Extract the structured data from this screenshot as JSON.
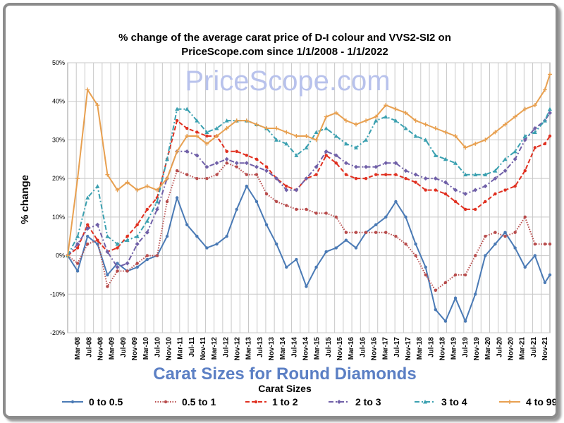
{
  "chart_data": {
    "type": "line",
    "title": "% change of the average carat price of  D-I colour and VVS2-SI2  on",
    "subtitle": "PriceScope.com since 1/1/2008 - 1/1/2022",
    "watermark": "PriceScope.com",
    "ylabel": "% change",
    "xlabel": "Carat Sizes for Round Diamonds",
    "legend_title": "Carat Sizes",
    "legend_position": "bottom",
    "grid": true,
    "ylim": [
      -20,
      50
    ],
    "yticks": [
      "50%",
      "40%",
      "30%",
      "20%",
      "10%",
      "0%",
      "-10%",
      "-20%"
    ],
    "xticks": [
      "Mar-08",
      "Jul-08",
      "Nov-08",
      "Mar-09",
      "Jul-09",
      "Nov-09",
      "Mar-10",
      "Jul-10",
      "Nov-10",
      "Mar-11",
      "Jul-11",
      "Nov-11",
      "Mar-12",
      "Jul-12",
      "Nov-12",
      "Mar-13",
      "Jul-13",
      "Nov-13",
      "Mar-14",
      "Jul-14",
      "Nov-14",
      "Mar-15",
      "Jul-15",
      "Nov-15",
      "Mar-16",
      "Jul-16",
      "Nov-16",
      "Mar-17",
      "Jul-17",
      "Nov-17",
      "Mar-18",
      "Jul-18",
      "Nov-18",
      "Mar-19",
      "Jul-19",
      "Nov-19",
      "Mar-20",
      "Jul-20",
      "Nov-20",
      "Mar-21",
      "Jul-21",
      "Nov-21"
    ],
    "x_start": "Jan-08",
    "x_end": "Jan-22",
    "series": [
      {
        "name": "0 to 0.5",
        "color": "#4a7ab5",
        "dash": "solid",
        "marker": "circle",
        "points": [
          [
            0,
            0
          ],
          [
            2,
            -4
          ],
          [
            4,
            5
          ],
          [
            6,
            3
          ],
          [
            8,
            -5
          ],
          [
            10,
            -2
          ],
          [
            12,
            -4
          ],
          [
            14,
            -3
          ],
          [
            16,
            -1
          ],
          [
            18,
            0
          ],
          [
            20,
            5
          ],
          [
            22,
            15
          ],
          [
            24,
            8
          ],
          [
            26,
            5
          ],
          [
            28,
            2
          ],
          [
            30,
            3
          ],
          [
            32,
            5
          ],
          [
            34,
            12
          ],
          [
            36,
            18
          ],
          [
            38,
            14
          ],
          [
            40,
            8
          ],
          [
            42,
            3
          ],
          [
            44,
            -3
          ],
          [
            46,
            -1
          ],
          [
            48,
            -8
          ],
          [
            50,
            -3
          ],
          [
            52,
            1
          ],
          [
            54,
            2
          ],
          [
            56,
            4
          ],
          [
            58,
            2
          ],
          [
            60,
            6
          ],
          [
            62,
            8
          ],
          [
            64,
            10
          ],
          [
            66,
            14
          ],
          [
            68,
            10
          ],
          [
            70,
            3
          ],
          [
            72,
            -3
          ],
          [
            74,
            -14
          ],
          [
            76,
            -17
          ],
          [
            78,
            -11
          ],
          [
            80,
            -17
          ],
          [
            82,
            -10
          ],
          [
            84,
            0
          ],
          [
            86,
            3
          ],
          [
            88,
            6
          ],
          [
            90,
            2
          ],
          [
            92,
            -3
          ],
          [
            94,
            0
          ],
          [
            96,
            -7
          ],
          [
            97,
            -5
          ]
        ]
      },
      {
        "name": "0.5 to 1",
        "color": "#b84c4c",
        "dash": "dotted",
        "marker": "circle",
        "points": [
          [
            0,
            0
          ],
          [
            2,
            -2
          ],
          [
            4,
            3
          ],
          [
            6,
            4
          ],
          [
            8,
            -8
          ],
          [
            10,
            -4
          ],
          [
            12,
            -4
          ],
          [
            14,
            -2
          ],
          [
            16,
            0
          ],
          [
            18,
            0
          ],
          [
            20,
            14
          ],
          [
            22,
            22
          ],
          [
            24,
            21
          ],
          [
            26,
            20
          ],
          [
            28,
            20
          ],
          [
            30,
            21
          ],
          [
            32,
            24
          ],
          [
            34,
            23
          ],
          [
            36,
            21
          ],
          [
            38,
            21
          ],
          [
            40,
            16
          ],
          [
            42,
            14
          ],
          [
            44,
            13
          ],
          [
            46,
            12
          ],
          [
            48,
            12
          ],
          [
            50,
            11
          ],
          [
            52,
            11
          ],
          [
            54,
            10
          ],
          [
            56,
            6
          ],
          [
            58,
            6
          ],
          [
            60,
            6
          ],
          [
            62,
            6
          ],
          [
            64,
            6
          ],
          [
            66,
            5
          ],
          [
            68,
            3
          ],
          [
            70,
            0
          ],
          [
            72,
            -5
          ],
          [
            74,
            -9
          ],
          [
            76,
            -7
          ],
          [
            78,
            -5
          ],
          [
            80,
            -5
          ],
          [
            82,
            0
          ],
          [
            84,
            5
          ],
          [
            86,
            6
          ],
          [
            88,
            5
          ],
          [
            90,
            6
          ],
          [
            92,
            10
          ],
          [
            94,
            3
          ],
          [
            96,
            3
          ],
          [
            97,
            3
          ]
        ]
      },
      {
        "name": "1 to 2",
        "color": "#e03020",
        "dash": "dashed",
        "marker": "circle",
        "points": [
          [
            0,
            0
          ],
          [
            2,
            2
          ],
          [
            4,
            8
          ],
          [
            6,
            4
          ],
          [
            8,
            1
          ],
          [
            10,
            2
          ],
          [
            12,
            5
          ],
          [
            14,
            8
          ],
          [
            16,
            12
          ],
          [
            18,
            15
          ],
          [
            20,
            25
          ],
          [
            22,
            35
          ],
          [
            24,
            33
          ],
          [
            26,
            32
          ],
          [
            28,
            31
          ],
          [
            30,
            31
          ],
          [
            32,
            27
          ],
          [
            34,
            27
          ],
          [
            36,
            26
          ],
          [
            38,
            25
          ],
          [
            40,
            23
          ],
          [
            42,
            20
          ],
          [
            44,
            18
          ],
          [
            46,
            17
          ],
          [
            48,
            20
          ],
          [
            50,
            21
          ],
          [
            52,
            26
          ],
          [
            54,
            24
          ],
          [
            56,
            21
          ],
          [
            58,
            20
          ],
          [
            60,
            20
          ],
          [
            62,
            21
          ],
          [
            64,
            21
          ],
          [
            66,
            21
          ],
          [
            68,
            20
          ],
          [
            70,
            19
          ],
          [
            72,
            17
          ],
          [
            74,
            17
          ],
          [
            76,
            16
          ],
          [
            78,
            14
          ],
          [
            80,
            12
          ],
          [
            82,
            12
          ],
          [
            84,
            14
          ],
          [
            86,
            16
          ],
          [
            88,
            17
          ],
          [
            90,
            18
          ],
          [
            92,
            22
          ],
          [
            94,
            28
          ],
          [
            96,
            29
          ],
          [
            97,
            31
          ]
        ]
      },
      {
        "name": "2 to 3",
        "color": "#7060a8",
        "dash": "dashdot",
        "marker": "diamond",
        "points": [
          [
            0,
            0
          ],
          [
            2,
            3
          ],
          [
            4,
            7
          ],
          [
            6,
            8
          ],
          [
            8,
            1
          ],
          [
            10,
            -3
          ],
          [
            12,
            -2
          ],
          [
            14,
            3
          ],
          [
            16,
            6
          ],
          [
            18,
            12
          ],
          [
            20,
            20
          ],
          [
            22,
            27
          ],
          [
            24,
            27
          ],
          [
            26,
            26
          ],
          [
            28,
            23
          ],
          [
            30,
            24
          ],
          [
            32,
            25
          ],
          [
            34,
            24
          ],
          [
            36,
            24
          ],
          [
            38,
            23
          ],
          [
            40,
            22
          ],
          [
            42,
            20
          ],
          [
            44,
            17
          ],
          [
            46,
            17
          ],
          [
            48,
            20
          ],
          [
            50,
            23
          ],
          [
            52,
            27
          ],
          [
            54,
            26
          ],
          [
            56,
            24
          ],
          [
            58,
            23
          ],
          [
            60,
            23
          ],
          [
            62,
            23
          ],
          [
            64,
            24
          ],
          [
            66,
            24
          ],
          [
            68,
            22
          ],
          [
            70,
            21
          ],
          [
            72,
            20
          ],
          [
            74,
            20
          ],
          [
            76,
            19
          ],
          [
            78,
            17
          ],
          [
            80,
            16
          ],
          [
            82,
            17
          ],
          [
            84,
            18
          ],
          [
            86,
            20
          ],
          [
            88,
            22
          ],
          [
            90,
            25
          ],
          [
            92,
            30
          ],
          [
            94,
            33
          ],
          [
            96,
            35
          ],
          [
            97,
            37
          ]
        ]
      },
      {
        "name": "3 to 4",
        "color": "#3aa0b0",
        "dash": "dashdot",
        "marker": "triangle",
        "points": [
          [
            0,
            0
          ],
          [
            2,
            5
          ],
          [
            4,
            15
          ],
          [
            6,
            18
          ],
          [
            8,
            5
          ],
          [
            10,
            3
          ],
          [
            12,
            4
          ],
          [
            14,
            5
          ],
          [
            16,
            9
          ],
          [
            18,
            14
          ],
          [
            20,
            25
          ],
          [
            22,
            38
          ],
          [
            24,
            38
          ],
          [
            26,
            35
          ],
          [
            28,
            32
          ],
          [
            30,
            33
          ],
          [
            32,
            35
          ],
          [
            34,
            35
          ],
          [
            36,
            35
          ],
          [
            38,
            34
          ],
          [
            40,
            33
          ],
          [
            42,
            30
          ],
          [
            44,
            29
          ],
          [
            46,
            26
          ],
          [
            48,
            28
          ],
          [
            50,
            32
          ],
          [
            52,
            33
          ],
          [
            54,
            31
          ],
          [
            56,
            29
          ],
          [
            58,
            28
          ],
          [
            60,
            30
          ],
          [
            62,
            35
          ],
          [
            64,
            36
          ],
          [
            66,
            35
          ],
          [
            68,
            33
          ],
          [
            70,
            31
          ],
          [
            72,
            30
          ],
          [
            74,
            26
          ],
          [
            76,
            25
          ],
          [
            78,
            24
          ],
          [
            80,
            21
          ],
          [
            82,
            21
          ],
          [
            84,
            21
          ],
          [
            86,
            22
          ],
          [
            88,
            25
          ],
          [
            90,
            27
          ],
          [
            92,
            31
          ],
          [
            94,
            32
          ],
          [
            96,
            35
          ],
          [
            97,
            38
          ]
        ]
      },
      {
        "name": "4 to 99",
        "color": "#e8a050",
        "dash": "solid",
        "marker": "plus",
        "points": [
          [
            0,
            0
          ],
          [
            2,
            20
          ],
          [
            4,
            43
          ],
          [
            6,
            39
          ],
          [
            8,
            21
          ],
          [
            10,
            17
          ],
          [
            12,
            19
          ],
          [
            14,
            17
          ],
          [
            16,
            18
          ],
          [
            18,
            17
          ],
          [
            20,
            20
          ],
          [
            22,
            27
          ],
          [
            24,
            31
          ],
          [
            26,
            31
          ],
          [
            28,
            29
          ],
          [
            30,
            31
          ],
          [
            32,
            33
          ],
          [
            34,
            35
          ],
          [
            36,
            35
          ],
          [
            38,
            34
          ],
          [
            40,
            33
          ],
          [
            42,
            33
          ],
          [
            44,
            32
          ],
          [
            46,
            31
          ],
          [
            48,
            31
          ],
          [
            50,
            30
          ],
          [
            52,
            36
          ],
          [
            54,
            37
          ],
          [
            56,
            35
          ],
          [
            58,
            34
          ],
          [
            60,
            35
          ],
          [
            62,
            36
          ],
          [
            64,
            39
          ],
          [
            66,
            38
          ],
          [
            68,
            37
          ],
          [
            70,
            35
          ],
          [
            72,
            34
          ],
          [
            74,
            33
          ],
          [
            76,
            32
          ],
          [
            78,
            31
          ],
          [
            80,
            28
          ],
          [
            82,
            29
          ],
          [
            84,
            30
          ],
          [
            86,
            32
          ],
          [
            88,
            34
          ],
          [
            90,
            36
          ],
          [
            92,
            38
          ],
          [
            94,
            39
          ],
          [
            96,
            43
          ],
          [
            97,
            47
          ]
        ]
      }
    ]
  }
}
